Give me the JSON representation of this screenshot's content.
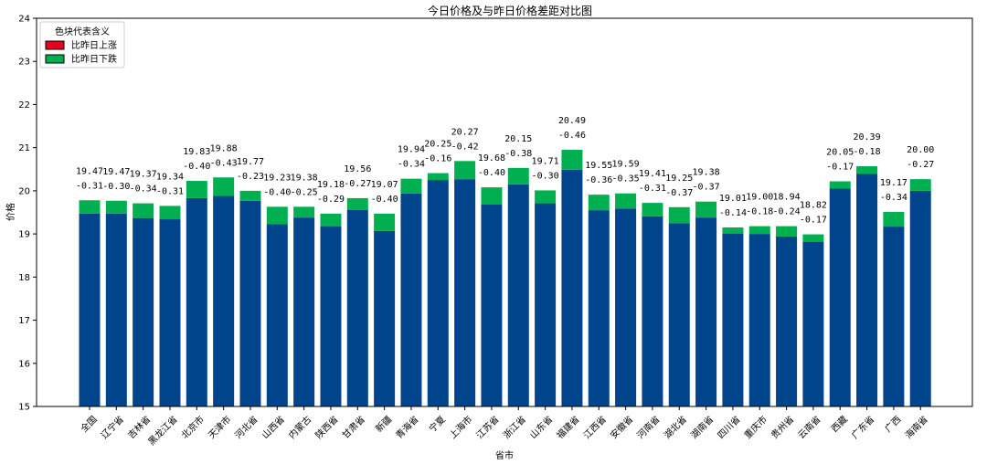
{
  "chart_data": {
    "type": "bar",
    "stacked": true,
    "title": "今日价格及与昨日价格差距对比图",
    "xlabel": "省市",
    "ylabel": "价格",
    "ylim": [
      15,
      24
    ],
    "yticks": [
      15,
      16,
      17,
      18,
      19,
      20,
      21,
      22,
      23,
      24
    ],
    "grid": false,
    "legend": {
      "title": "色块代表含义",
      "placement": "top-left",
      "entries": [
        {
          "name": "比昨日上涨",
          "color": "#e8001c"
        },
        {
          "name": "比昨日下跌",
          "color": "#00b050"
        }
      ]
    },
    "colors": {
      "base": "#00448c",
      "rise": "#e8001c",
      "fall": "#00b050"
    },
    "categories": [
      "全国",
      "辽宁省",
      "吉林省",
      "黑龙江省",
      "北京市",
      "天津市",
      "河北省",
      "山西省",
      "内蒙古",
      "陕西省",
      "甘肃省",
      "新疆",
      "青海省",
      "宁夏",
      "上海市",
      "江苏省",
      "浙江省",
      "山东省",
      "福建省",
      "江西省",
      "安徽省",
      "河南省",
      "湖北省",
      "湖南省",
      "四川省",
      "重庆市",
      "贵州省",
      "云南省",
      "西藏",
      "广东省",
      "广西",
      "海南省"
    ],
    "today_price": [
      19.47,
      19.47,
      19.37,
      19.34,
      19.83,
      19.88,
      19.77,
      19.23,
      19.38,
      19.18,
      19.56,
      19.07,
      19.94,
      20.25,
      20.27,
      19.68,
      20.15,
      19.71,
      20.49,
      19.55,
      19.59,
      19.41,
      19.25,
      19.38,
      19.01,
      19.0,
      18.94,
      18.82,
      20.05,
      20.39,
      19.17,
      20.0
    ],
    "change_labels": [
      "-0.31",
      "-0.30",
      "-0.34",
      "-0.31",
      "-0.40",
      "-0.43",
      "-0.23",
      "-0.40",
      "-0.25",
      "-0.29",
      "-0.27",
      "-0.40",
      "-0.34",
      "-0.16",
      "-0.42",
      "-0.40",
      "-0.38",
      "-0.30",
      "-0.46",
      "-0.36",
      "-0.35",
      "-0.31",
      "-0.37",
      "-0.37",
      "-0.14",
      "-0.18",
      "-0.24",
      "-0.17",
      "-0.17",
      "-0.18",
      "-0.34",
      "-0.27"
    ],
    "change": [
      -0.31,
      -0.3,
      -0.34,
      -0.31,
      -0.4,
      -0.43,
      -0.23,
      -0.4,
      -0.25,
      -0.29,
      -0.27,
      -0.4,
      -0.34,
      -0.16,
      -0.42,
      -0.4,
      -0.38,
      -0.3,
      -0.46,
      -0.36,
      -0.35,
      -0.31,
      -0.37,
      -0.37,
      -0.14,
      -0.18,
      -0.24,
      -0.17,
      -0.17,
      -0.18,
      -0.34,
      -0.27
    ]
  }
}
